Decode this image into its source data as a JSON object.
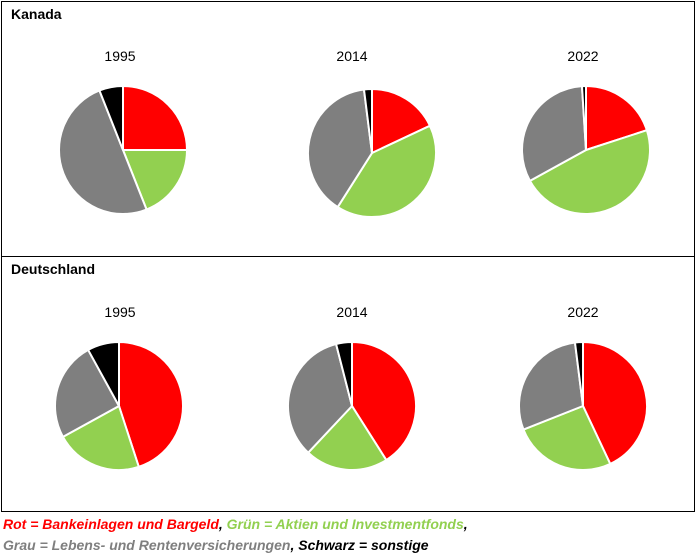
{
  "colors": {
    "red": "#ff0000",
    "green": "#92d050",
    "grey": "#7f7f7f",
    "black": "#000000"
  },
  "chart_data": [
    {
      "type": "pie",
      "region": "Kanada",
      "charts": [
        {
          "title": "1995",
          "values": [
            25,
            19,
            50,
            6
          ]
        },
        {
          "title": "2014",
          "values": [
            18,
            41,
            39,
            2
          ]
        },
        {
          "title": "2022",
          "values": [
            20,
            47,
            32,
            1
          ]
        }
      ]
    },
    {
      "type": "pie",
      "region": "Deutschland",
      "charts": [
        {
          "title": "1995",
          "values": [
            45,
            22,
            25,
            8
          ]
        },
        {
          "title": "2014",
          "values": [
            41,
            21,
            34,
            4
          ]
        },
        {
          "title": "2022",
          "values": [
            43,
            26,
            29,
            2
          ]
        }
      ]
    }
  ],
  "legend": {
    "red": "Rot = Bankeinlagen und Bargeld",
    "sep1": ", ",
    "green": "Grün = Aktien und Investmentfonds",
    "sep2": ",",
    "grey": "Grau = Lebens- und Rentenversicherungen",
    "sep3": ", ",
    "black": "Schwarz = sonstige"
  }
}
